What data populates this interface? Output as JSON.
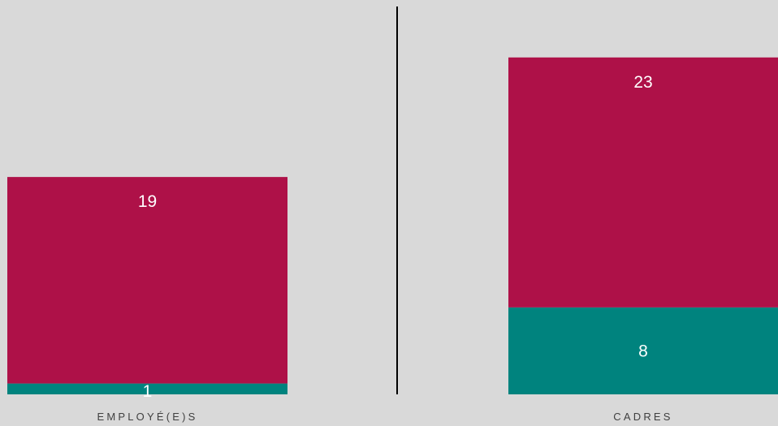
{
  "chart_data": {
    "type": "bar",
    "stacked": true,
    "categories": [
      "EMPLOYÉ(E)S",
      "CADRES"
    ],
    "series": [
      {
        "values": [
          1,
          8
        ],
        "color": "#00837e"
      },
      {
        "values": [
          19,
          23
        ],
        "color": "#ae1148"
      }
    ],
    "ylim": [
      0,
      33
    ],
    "grid": false,
    "legend": "none",
    "background": "#d9d9d9",
    "divider_color": "#000000",
    "data_label_color": "#ffffff",
    "category_label_color": "#404040"
  }
}
